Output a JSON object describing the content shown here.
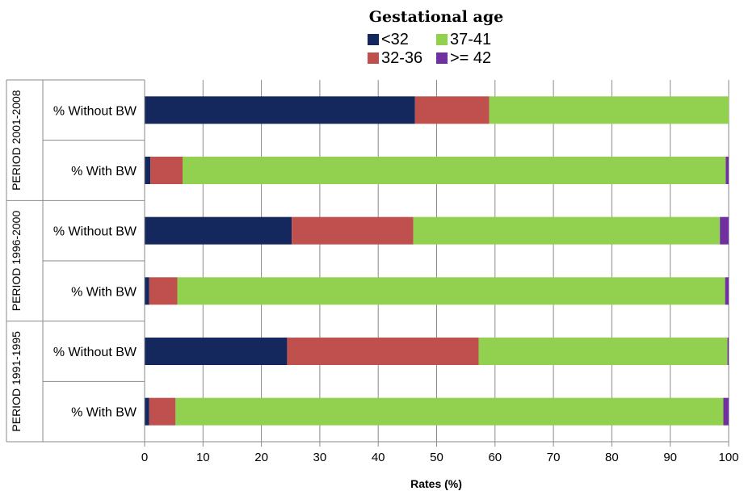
{
  "chart_data": {
    "type": "bar",
    "orientation": "horizontal",
    "stacked": true,
    "legend_title": "Gestational age",
    "legend_placement": "top",
    "xlabel": "Rates (%)",
    "xlim": [
      0,
      100
    ],
    "x_ticks": [
      0,
      10,
      20,
      30,
      40,
      50,
      60,
      70,
      80,
      90,
      100
    ],
    "grid": true,
    "groups": [
      {
        "label": "PERIOD 2001-2008",
        "categories": [
          "% Without BW",
          "% With BW"
        ]
      },
      {
        "label": "PERIOD 1996-2000",
        "categories": [
          "% Without BW",
          "% With BW"
        ]
      },
      {
        "label": "PERIOD  1991-1995",
        "categories": [
          "% Without BW",
          "% With BW"
        ]
      }
    ],
    "series": [
      {
        "name": "<32",
        "color": "#14285e",
        "values": [
          46.3,
          1.0,
          25.2,
          0.8,
          24.4,
          0.8
        ]
      },
      {
        "name": "32-36",
        "color": "#c0504d",
        "values": [
          12.7,
          5.5,
          20.8,
          4.8,
          32.8,
          4.5
        ]
      },
      {
        "name": "37-41",
        "color": "#92d050",
        "values": [
          41.0,
          93.0,
          52.5,
          93.8,
          42.6,
          93.8
        ]
      },
      {
        "name": ">= 42",
        "color": "#7030a0",
        "values": [
          0.0,
          0.5,
          1.5,
          0.6,
          0.2,
          0.9
        ]
      }
    ]
  }
}
